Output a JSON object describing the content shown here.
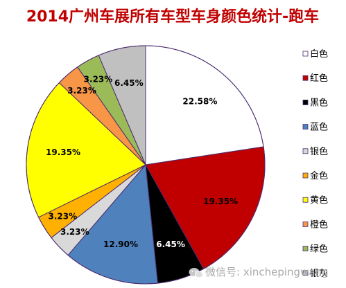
{
  "watermark": "微信号: xinchepingwang",
  "chart_data": {
    "type": "pie",
    "title": "2014广州车展所有车型车身颜色统计-跑车",
    "legend_position": "right",
    "legend": [
      "白色",
      "红色",
      "黑色",
      "蓝色",
      "银色",
      "金色",
      "黄色",
      "橙色",
      "绿色",
      "银灰"
    ],
    "slices": [
      {
        "name": "白色",
        "value": 22.58,
        "label": "22.58%",
        "color": "#ffffff"
      },
      {
        "name": "红色",
        "value": 19.35,
        "label": "19.35%",
        "color": "#c00000"
      },
      {
        "name": "黑色",
        "value": 6.45,
        "label": "6.45%",
        "color": "#000000"
      },
      {
        "name": "蓝色",
        "value": 12.9,
        "label": "12.90%",
        "color": "#4f81bd"
      },
      {
        "name": "银色",
        "value": 3.23,
        "label": "3.23%",
        "color": "#d9d9d9"
      },
      {
        "name": "金色",
        "value": 3.23,
        "label": "3.23%",
        "color": "#ffb000"
      },
      {
        "name": "黄色",
        "value": 19.35,
        "label": "19.35%",
        "color": "#ffff00"
      },
      {
        "name": "橙色",
        "value": 3.23,
        "label": "3.23%",
        "color": "#f79646"
      },
      {
        "name": "绿色",
        "value": 3.23,
        "label": "3.23%",
        "color": "#9bbb59"
      },
      {
        "name": "银灰",
        "value": 6.45,
        "label": "6.45%",
        "color": "#c0c0c0"
      }
    ]
  }
}
